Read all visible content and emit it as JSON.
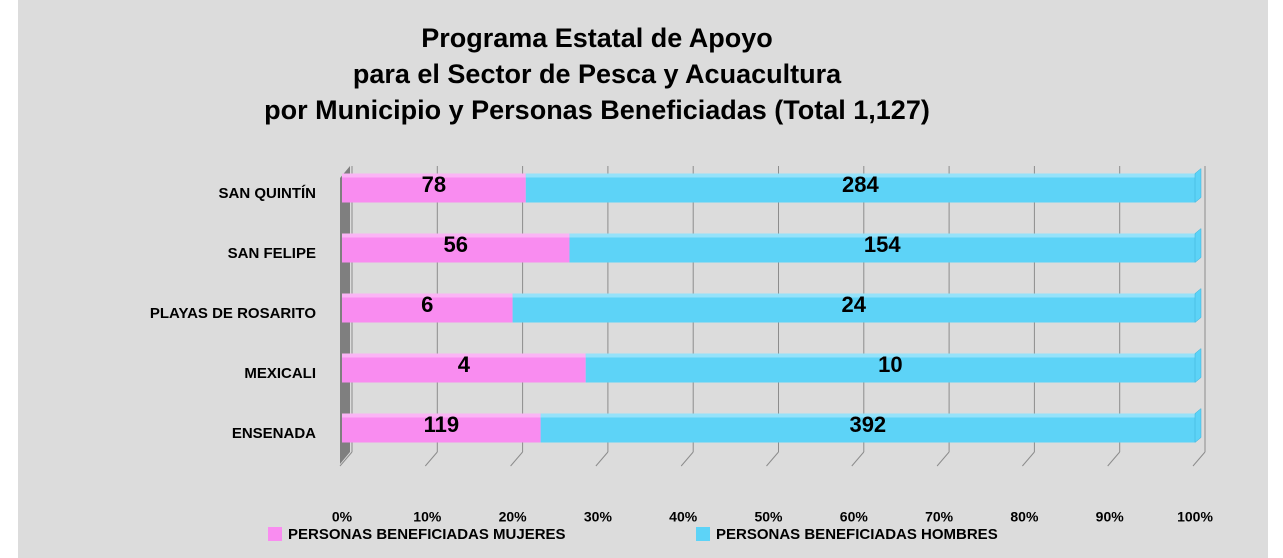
{
  "chart_data": {
    "type": "bar100h",
    "title": [
      "Programa Estatal de Apoyo",
      "para el Sector de Pesca y Acuacultura",
      "por Municipio y Personas Beneficiadas (Total 1,127)"
    ],
    "categories": [
      "SAN QUINTÍN",
      "SAN FELIPE",
      "PLAYAS DE ROSARITO",
      "MEXICALI",
      "ENSENADA"
    ],
    "series": [
      {
        "name": "PERSONAS BENEFICIADAS MUJERES",
        "color": "#f98cf0",
        "values": [
          78,
          56,
          6,
          4,
          119
        ]
      },
      {
        "name": "PERSONAS BENEFICIADAS HOMBRES",
        "color": "#5dd3f7",
        "values": [
          284,
          154,
          24,
          10,
          392
        ]
      }
    ],
    "xlim": [
      0,
      100
    ],
    "xticks": [
      {
        "value": 0,
        "label": "0%"
      },
      {
        "value": 10,
        "label": "10%"
      },
      {
        "value": 20,
        "label": "20%"
      },
      {
        "value": 30,
        "label": "30%"
      },
      {
        "value": 40,
        "label": "40%"
      },
      {
        "value": 50,
        "label": "50%"
      },
      {
        "value": 60,
        "label": "60%"
      },
      {
        "value": 70,
        "label": "70%"
      },
      {
        "value": 80,
        "label": "80%"
      },
      {
        "value": 90,
        "label": "90%"
      },
      {
        "value": 100,
        "label": "100%"
      }
    ],
    "grid": true
  }
}
